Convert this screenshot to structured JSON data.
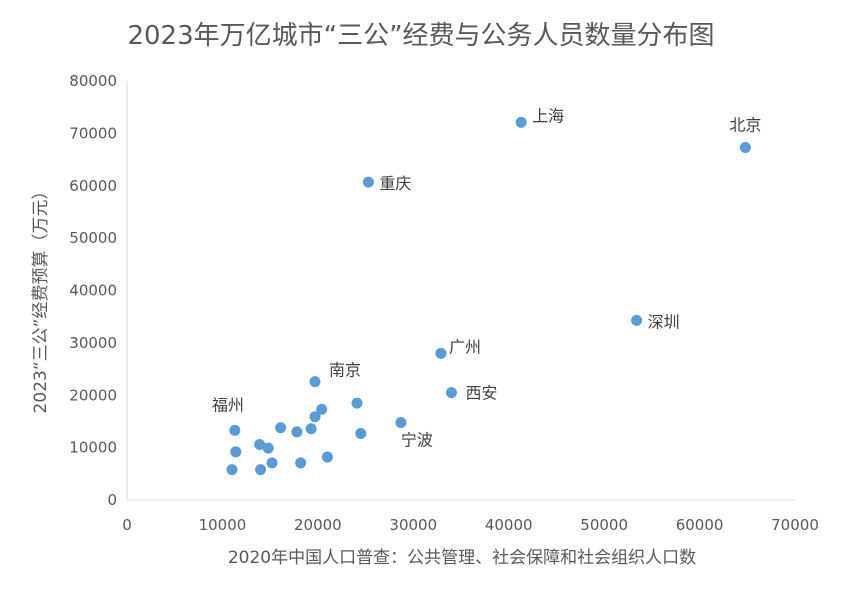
{
  "chart_data": {
    "type": "scatter",
    "title": "2023年万亿城市“三公”经费与公务人员数量分布图",
    "xlabel": "2020年中国人口普查：公共管理、社会保障和社会组织人口数",
    "ylabel": "2023“三公”经费预算（万元）",
    "xlim": [
      0,
      70000
    ],
    "ylim": [
      0,
      80000
    ],
    "xticks": [
      "0",
      "10000",
      "20000",
      "30000",
      "40000",
      "50000",
      "60000",
      "70000"
    ],
    "yticks": [
      "0",
      "10000",
      "20000",
      "30000",
      "40000",
      "50000",
      "60000",
      "70000",
      "80000"
    ],
    "grid": false,
    "marker_color": "#5b9bd5",
    "points": [
      {
        "x": 64800,
        "y": 67300,
        "label": "北京"
      },
      {
        "x": 41300,
        "y": 72100,
        "label": "上海"
      },
      {
        "x": 25300,
        "y": 60700,
        "label": "重庆"
      },
      {
        "x": 53400,
        "y": 34300,
        "label": "深圳"
      },
      {
        "x": 32900,
        "y": 28000,
        "label": "广州"
      },
      {
        "x": 34000,
        "y": 20500,
        "label": "西安"
      },
      {
        "x": 19700,
        "y": 22600,
        "label": "南京"
      },
      {
        "x": 28700,
        "y": 14800,
        "label": "宁波"
      },
      {
        "x": 11300,
        "y": 13300,
        "label": "福州"
      },
      {
        "x": 24100,
        "y": 18500,
        "label": ""
      },
      {
        "x": 24500,
        "y": 12700,
        "label": ""
      },
      {
        "x": 20400,
        "y": 17300,
        "label": ""
      },
      {
        "x": 19700,
        "y": 15900,
        "label": ""
      },
      {
        "x": 19300,
        "y": 13600,
        "label": ""
      },
      {
        "x": 17800,
        "y": 13000,
        "label": ""
      },
      {
        "x": 16100,
        "y": 13800,
        "label": ""
      },
      {
        "x": 13900,
        "y": 10600,
        "label": ""
      },
      {
        "x": 14800,
        "y": 9900,
        "label": ""
      },
      {
        "x": 11400,
        "y": 9200,
        "label": ""
      },
      {
        "x": 15200,
        "y": 7100,
        "label": ""
      },
      {
        "x": 18200,
        "y": 7100,
        "label": ""
      },
      {
        "x": 21000,
        "y": 8200,
        "label": ""
      },
      {
        "x": 11000,
        "y": 5800,
        "label": ""
      },
      {
        "x": 14000,
        "y": 5800,
        "label": ""
      }
    ]
  }
}
